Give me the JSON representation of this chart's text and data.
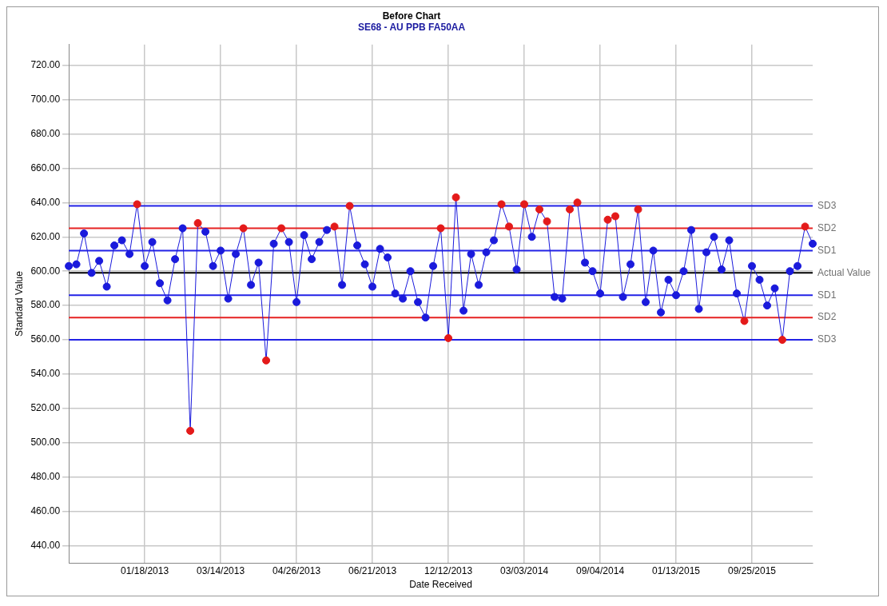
{
  "chart_data": {
    "type": "line",
    "title": "Before Chart",
    "subtitle": "SE68 - AU PPB FA50AA",
    "xlabel": "Date Received",
    "ylabel": "Standard Value",
    "categories": [
      null,
      null,
      null,
      null,
      null,
      null,
      null,
      null,
      null,
      null,
      "01/18/2013",
      null,
      null,
      null,
      null,
      null,
      null,
      null,
      null,
      null,
      "03/14/2013",
      null,
      null,
      null,
      null,
      null,
      null,
      null,
      null,
      null,
      "04/26/2013",
      null,
      null,
      null,
      null,
      null,
      null,
      null,
      null,
      null,
      "06/21/2013",
      null,
      null,
      null,
      null,
      null,
      null,
      null,
      null,
      null,
      "12/12/2013",
      null,
      null,
      null,
      null,
      null,
      null,
      null,
      null,
      null,
      "03/03/2014",
      null,
      null,
      null,
      null,
      null,
      null,
      null,
      null,
      null,
      "09/04/2014",
      null,
      null,
      null,
      null,
      null,
      null,
      null,
      null,
      null,
      "01/13/2015",
      null,
      null,
      null,
      null,
      null,
      null,
      null,
      null,
      null,
      "09/25/2015",
      null,
      null,
      null,
      null,
      null,
      null,
      null,
      null
    ],
    "series": [
      {
        "color": "#1a1adc",
        "values": [
          603,
          604,
          622,
          599,
          606,
          591,
          615,
          618,
          610,
          639,
          603,
          617,
          593,
          583,
          607,
          625,
          507,
          628,
          623,
          603,
          612,
          584,
          610,
          625,
          592,
          605,
          548,
          616,
          625,
          617,
          582,
          621,
          607,
          617,
          624,
          626,
          592,
          638,
          615,
          604,
          591,
          613,
          608,
          587,
          584,
          600,
          582,
          573,
          603,
          625,
          561,
          643,
          577,
          610,
          592,
          611,
          618,
          639,
          626,
          601,
          639,
          620,
          636,
          629,
          585,
          584,
          636,
          640,
          605,
          600,
          587,
          630,
          632,
          585,
          604,
          636,
          582,
          612,
          576,
          595,
          586,
          600,
          624,
          578,
          611,
          620,
          601,
          618,
          587,
          571,
          603,
          595,
          580,
          590,
          560,
          600,
          603,
          626,
          616
        ],
        "colors": [
          "#1a1adc",
          "#1a1adc",
          "#1a1adc",
          "#1a1adc",
          "#1a1adc",
          "#1a1adc",
          "#1a1adc",
          "#1a1adc",
          "#1a1adc",
          "#e41a1a",
          "#1a1adc",
          "#1a1adc",
          "#1a1adc",
          "#1a1adc",
          "#1a1adc",
          "#1a1adc",
          "#e41a1a",
          "#e41a1a",
          "#1a1adc",
          "#1a1adc",
          "#1a1adc",
          "#1a1adc",
          "#1a1adc",
          "#e41a1a",
          "#1a1adc",
          "#1a1adc",
          "#e41a1a",
          "#1a1adc",
          "#e41a1a",
          "#1a1adc",
          "#1a1adc",
          "#1a1adc",
          "#1a1adc",
          "#1a1adc",
          "#1a1adc",
          "#e41a1a",
          "#1a1adc",
          "#e41a1a",
          "#1a1adc",
          "#1a1adc",
          "#1a1adc",
          "#1a1adc",
          "#1a1adc",
          "#1a1adc",
          "#1a1adc",
          "#1a1adc",
          "#1a1adc",
          "#1a1adc",
          "#1a1adc",
          "#e41a1a",
          "#e41a1a",
          "#e41a1a",
          "#1a1adc",
          "#1a1adc",
          "#1a1adc",
          "#1a1adc",
          "#1a1adc",
          "#e41a1a",
          "#e41a1a",
          "#1a1adc",
          "#e41a1a",
          "#1a1adc",
          "#e41a1a",
          "#e41a1a",
          "#1a1adc",
          "#1a1adc",
          "#e41a1a",
          "#e41a1a",
          "#1a1adc",
          "#1a1adc",
          "#1a1adc",
          "#e41a1a",
          "#e41a1a",
          "#1a1adc",
          "#1a1adc",
          "#e41a1a",
          "#1a1adc",
          "#1a1adc",
          "#1a1adc",
          "#1a1adc",
          "#1a1adc",
          "#1a1adc",
          "#1a1adc",
          "#1a1adc",
          "#1a1adc",
          "#1a1adc",
          "#1a1adc",
          "#1a1adc",
          "#1a1adc",
          "#e41a1a",
          "#1a1adc",
          "#1a1adc",
          "#1a1adc",
          "#1a1adc",
          "#e41a1a",
          "#1a1adc",
          "#1a1adc",
          "#e41a1a",
          "#1a1adc"
        ]
      }
    ],
    "ylim": [
      430,
      732
    ],
    "yticks": [
      {
        "value": 440,
        "label": "440.00"
      },
      {
        "value": 460,
        "label": "460.00"
      },
      {
        "value": 480,
        "label": "480.00"
      },
      {
        "value": 500,
        "label": "500.00"
      },
      {
        "value": 520,
        "label": "520.00"
      },
      {
        "value": 540,
        "label": "540.00"
      },
      {
        "value": 560,
        "label": "560.00"
      },
      {
        "value": 580,
        "label": "580.00"
      },
      {
        "value": 600,
        "label": "600.00"
      },
      {
        "value": 620,
        "label": "620.00"
      },
      {
        "value": 640,
        "label": "640.00"
      },
      {
        "value": 660,
        "label": "660.00"
      },
      {
        "value": 680,
        "label": "680.00"
      },
      {
        "value": 700,
        "label": "700.00"
      },
      {
        "value": 720,
        "label": "720.00"
      }
    ],
    "ref_lines": [
      {
        "axis": "y",
        "value": 638,
        "label": "SD3",
        "color": "#2222e6"
      },
      {
        "axis": "y",
        "value": 625,
        "label": "SD2",
        "color": "#e62222"
      },
      {
        "axis": "y",
        "value": 612,
        "label": "SD1",
        "color": "#2222e6"
      },
      {
        "axis": "y",
        "value": 599,
        "label": "Actual Value",
        "color": "#000000"
      },
      {
        "axis": "y",
        "value": 586,
        "label": "SD1",
        "color": "#2222e6"
      },
      {
        "axis": "y",
        "value": 573,
        "label": "SD2",
        "color": "#e62222"
      },
      {
        "axis": "y",
        "value": 560,
        "label": "SD3",
        "color": "#2222e6"
      }
    ],
    "grid": true,
    "legend": false,
    "marker": "circle",
    "line_style": "solid"
  }
}
